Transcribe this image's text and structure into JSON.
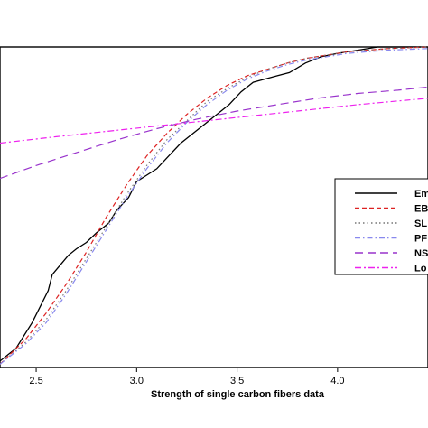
{
  "chart_data": {
    "type": "line",
    "xlabel": "Strength of single carbon fibers data",
    "ylabel": "",
    "x_ticks": [
      "2.5",
      "3.0",
      "3.5",
      "4.0"
    ],
    "x_tick_values": [
      2.5,
      3.0,
      3.5,
      4.0
    ],
    "xlim": [
      2.32,
      4.45
    ],
    "ylim": [
      0,
      1
    ],
    "grid": false,
    "legend_position": "right",
    "series": [
      {
        "name": "Em",
        "color": "#000000",
        "dash": "solid",
        "points": [
          [
            2.32,
            0.02
          ],
          [
            2.36,
            0.04
          ],
          [
            2.4,
            0.06
          ],
          [
            2.44,
            0.1
          ],
          [
            2.48,
            0.14
          ],
          [
            2.52,
            0.19
          ],
          [
            2.56,
            0.24
          ],
          [
            2.58,
            0.29
          ],
          [
            2.62,
            0.32
          ],
          [
            2.66,
            0.35
          ],
          [
            2.7,
            0.37
          ],
          [
            2.75,
            0.39
          ],
          [
            2.8,
            0.42
          ],
          [
            2.86,
            0.45
          ],
          [
            2.9,
            0.49
          ],
          [
            2.96,
            0.53
          ],
          [
            3.0,
            0.58
          ],
          [
            3.05,
            0.6
          ],
          [
            3.1,
            0.62
          ],
          [
            3.16,
            0.66
          ],
          [
            3.22,
            0.7
          ],
          [
            3.28,
            0.73
          ],
          [
            3.34,
            0.76
          ],
          [
            3.4,
            0.79
          ],
          [
            3.46,
            0.82
          ],
          [
            3.52,
            0.86
          ],
          [
            3.58,
            0.89
          ],
          [
            3.64,
            0.9
          ],
          [
            3.7,
            0.91
          ],
          [
            3.76,
            0.92
          ],
          [
            3.84,
            0.95
          ],
          [
            3.92,
            0.97
          ],
          [
            4.0,
            0.98
          ],
          [
            4.1,
            0.99
          ],
          [
            4.2,
            1.0
          ],
          [
            4.3,
            1.0
          ],
          [
            4.45,
            1.0
          ]
        ]
      },
      {
        "name": "EB",
        "color": "#dd2222",
        "dash": "red",
        "points": [
          [
            2.32,
            0.01
          ],
          [
            2.45,
            0.09
          ],
          [
            2.55,
            0.17
          ],
          [
            2.65,
            0.26
          ],
          [
            2.75,
            0.36
          ],
          [
            2.85,
            0.47
          ],
          [
            2.95,
            0.57
          ],
          [
            3.05,
            0.66
          ],
          [
            3.15,
            0.73
          ],
          [
            3.25,
            0.79
          ],
          [
            3.35,
            0.84
          ],
          [
            3.45,
            0.88
          ],
          [
            3.55,
            0.91
          ],
          [
            3.65,
            0.93
          ],
          [
            3.75,
            0.95
          ],
          [
            3.85,
            0.965
          ],
          [
            3.95,
            0.975
          ],
          [
            4.05,
            0.985
          ],
          [
            4.15,
            0.99
          ],
          [
            4.25,
            0.995
          ],
          [
            4.45,
            1.0
          ]
        ]
      },
      {
        "name": "SL",
        "color": "#777777",
        "dash": "dot",
        "points": [
          [
            2.32,
            0.01
          ],
          [
            2.45,
            0.08
          ],
          [
            2.55,
            0.15
          ],
          [
            2.65,
            0.24
          ],
          [
            2.75,
            0.34
          ],
          [
            2.85,
            0.44
          ],
          [
            2.95,
            0.54
          ],
          [
            3.05,
            0.63
          ],
          [
            3.15,
            0.71
          ],
          [
            3.25,
            0.77
          ],
          [
            3.35,
            0.83
          ],
          [
            3.45,
            0.87
          ],
          [
            3.55,
            0.905
          ],
          [
            3.65,
            0.93
          ],
          [
            3.75,
            0.95
          ],
          [
            3.85,
            0.965
          ],
          [
            3.95,
            0.975
          ],
          [
            4.05,
            0.985
          ],
          [
            4.15,
            0.99
          ],
          [
            4.25,
            0.995
          ],
          [
            4.45,
            1.0
          ]
        ]
      },
      {
        "name": "PF",
        "color": "#8888ee",
        "dash": "dashdot-blue",
        "points": [
          [
            2.32,
            0.01
          ],
          [
            2.45,
            0.075
          ],
          [
            2.55,
            0.14
          ],
          [
            2.65,
            0.23
          ],
          [
            2.75,
            0.33
          ],
          [
            2.85,
            0.43
          ],
          [
            2.95,
            0.53
          ],
          [
            3.05,
            0.62
          ],
          [
            3.15,
            0.7
          ],
          [
            3.25,
            0.765
          ],
          [
            3.35,
            0.82
          ],
          [
            3.45,
            0.865
          ],
          [
            3.55,
            0.9
          ],
          [
            3.65,
            0.925
          ],
          [
            3.75,
            0.945
          ],
          [
            3.85,
            0.96
          ],
          [
            3.95,
            0.97
          ],
          [
            4.05,
            0.98
          ],
          [
            4.15,
            0.985
          ],
          [
            4.25,
            0.99
          ],
          [
            4.45,
            0.995
          ]
        ]
      },
      {
        "name": "NS",
        "color": "#9933cc",
        "dash": "longdash",
        "points": [
          [
            2.32,
            0.59
          ],
          [
            2.5,
            0.63
          ],
          [
            2.7,
            0.67
          ],
          [
            2.9,
            0.71
          ],
          [
            3.1,
            0.745
          ],
          [
            3.3,
            0.775
          ],
          [
            3.5,
            0.8
          ],
          [
            3.7,
            0.82
          ],
          [
            3.9,
            0.84
          ],
          [
            4.1,
            0.855
          ],
          [
            4.3,
            0.865
          ],
          [
            4.45,
            0.875
          ]
        ]
      },
      {
        "name": "Lo",
        "color": "#ee22ee",
        "dash": "dashdot",
        "points": [
          [
            2.32,
            0.7
          ],
          [
            2.6,
            0.72
          ],
          [
            2.9,
            0.74
          ],
          [
            3.2,
            0.76
          ],
          [
            3.5,
            0.78
          ],
          [
            3.8,
            0.8
          ],
          [
            4.1,
            0.82
          ],
          [
            4.45,
            0.84
          ]
        ]
      }
    ]
  }
}
